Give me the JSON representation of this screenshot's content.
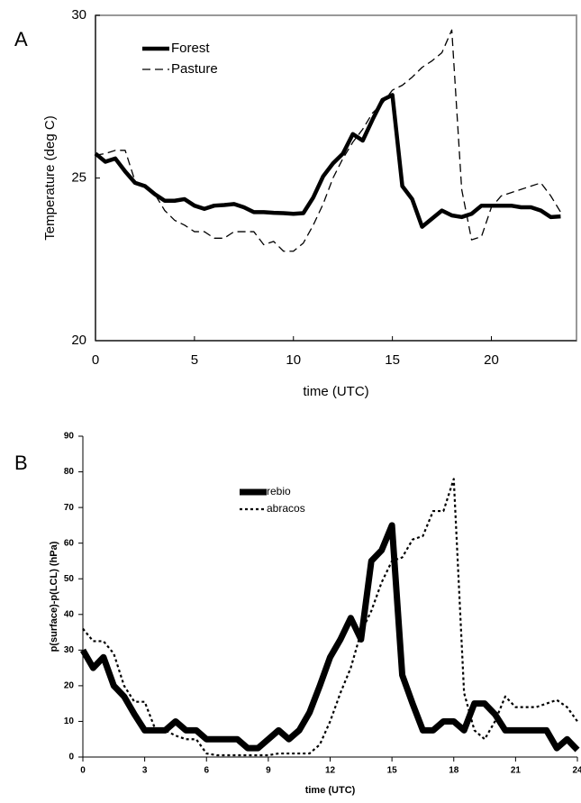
{
  "chart_data": [
    {
      "type": "line",
      "panel_label": "A",
      "xlabel": "time (UTC)",
      "ylabel": "Temperature (deg C)",
      "xlim": [
        0,
        24.3
      ],
      "xticks": [
        0,
        5,
        10,
        15,
        20
      ],
      "ylim": [
        20,
        30
      ],
      "yticks": [
        20,
        25,
        30
      ],
      "frame": true,
      "legend": "upper left",
      "x": [
        0,
        0.5,
        1,
        1.5,
        2,
        2.5,
        3,
        3.5,
        4,
        4.5,
        5,
        5.5,
        6,
        6.5,
        7,
        7.5,
        8,
        8.5,
        9,
        9.5,
        10,
        10.5,
        11,
        11.5,
        12,
        12.5,
        13,
        13.5,
        14,
        14.5,
        15,
        15.5,
        16,
        16.5,
        17,
        17.5,
        18,
        18.5,
        19,
        19.5,
        20,
        20.5,
        21,
        21.5,
        22,
        22.5,
        23,
        23.5
      ],
      "series": [
        {
          "name": "Forest",
          "color": "#000000",
          "linestyle": "solid",
          "values": [
            25.75,
            25.5,
            25.6,
            25.2,
            24.85,
            24.75,
            24.5,
            24.3,
            24.3,
            24.35,
            24.15,
            24.05,
            24.15,
            24.17,
            24.2,
            24.1,
            23.95,
            23.95,
            23.93,
            23.92,
            23.9,
            23.92,
            24.4,
            25.05,
            25.45,
            25.75,
            26.35,
            26.15,
            26.8,
            27.4,
            27.55,
            24.75,
            24.35,
            23.5,
            23.75,
            24.0,
            23.85,
            23.8,
            23.9,
            24.15,
            24.15,
            24.15,
            24.15,
            24.1,
            24.1,
            24.0,
            23.8,
            23.82
          ]
        },
        {
          "name": "Pasture",
          "color": "#000000",
          "linestyle": "dashed",
          "values": [
            25.7,
            25.75,
            25.85,
            25.85,
            24.9,
            24.7,
            24.5,
            24.0,
            23.7,
            23.55,
            23.35,
            23.35,
            23.15,
            23.15,
            23.35,
            23.35,
            23.35,
            22.95,
            23.05,
            22.75,
            22.75,
            23.0,
            23.55,
            24.2,
            25.0,
            25.6,
            26.1,
            26.5,
            27.0,
            27.3,
            27.7,
            27.85,
            28.1,
            28.4,
            28.6,
            28.85,
            29.55,
            24.65,
            23.1,
            23.2,
            24.1,
            24.45,
            24.55,
            24.65,
            24.75,
            24.85,
            24.45,
            23.95
          ]
        }
      ]
    },
    {
      "type": "line",
      "panel_label": "B",
      "xlabel": "time (UTC)",
      "ylabel": "p(surface)-p(LCL)  (hPa)",
      "xlim": [
        0,
        24
      ],
      "xticks": [
        0,
        3,
        6,
        9,
        12,
        15,
        18,
        21,
        24
      ],
      "ylim": [
        0,
        90
      ],
      "yticks": [
        0,
        10,
        20,
        30,
        40,
        50,
        60,
        70,
        80,
        90
      ],
      "frame": false,
      "legend": "upper center",
      "x": [
        0,
        0.5,
        1,
        1.5,
        2,
        2.5,
        3,
        3.5,
        4,
        4.5,
        5,
        5.5,
        6,
        6.5,
        7,
        7.5,
        8,
        8.5,
        9,
        9.5,
        10,
        10.5,
        11,
        11.5,
        12,
        12.5,
        13,
        13.5,
        14,
        14.5,
        15,
        15.5,
        16,
        16.5,
        17,
        17.5,
        18,
        18.5,
        19,
        19.5,
        20,
        20.5,
        21,
        21.5,
        22,
        22.5,
        23,
        23.5,
        24
      ],
      "series": [
        {
          "name": "rebio",
          "color": "#000000",
          "linestyle": "solid",
          "values": [
            30,
            25,
            28,
            20,
            17,
            12,
            7.5,
            7.5,
            7.5,
            10,
            7.5,
            7.5,
            5,
            5,
            5,
            5,
            2.5,
            2.5,
            5,
            7.5,
            5,
            7.5,
            12.5,
            20,
            28,
            33,
            39,
            33,
            55,
            58,
            65,
            23,
            15,
            7.5,
            7.5,
            10,
            10,
            7.5,
            15,
            15,
            12,
            7.5,
            7.5,
            7.5,
            7.5,
            7.5,
            2.5,
            5,
            2
          ]
        },
        {
          "name": "abracos",
          "color": "#000000",
          "linestyle": "dotted",
          "values": [
            36,
            32.5,
            32.5,
            29,
            20,
            15.5,
            15.5,
            8,
            7.5,
            6,
            5,
            5,
            1,
            0.5,
            0.5,
            0.5,
            0.5,
            0.5,
            0.5,
            1,
            1,
            1,
            1,
            3.5,
            10,
            18,
            25,
            35,
            41,
            49,
            55,
            56,
            61,
            62,
            69,
            69,
            78,
            18,
            7.5,
            5,
            10,
            17,
            14,
            14,
            14,
            15,
            16,
            14,
            10
          ]
        }
      ]
    }
  ]
}
